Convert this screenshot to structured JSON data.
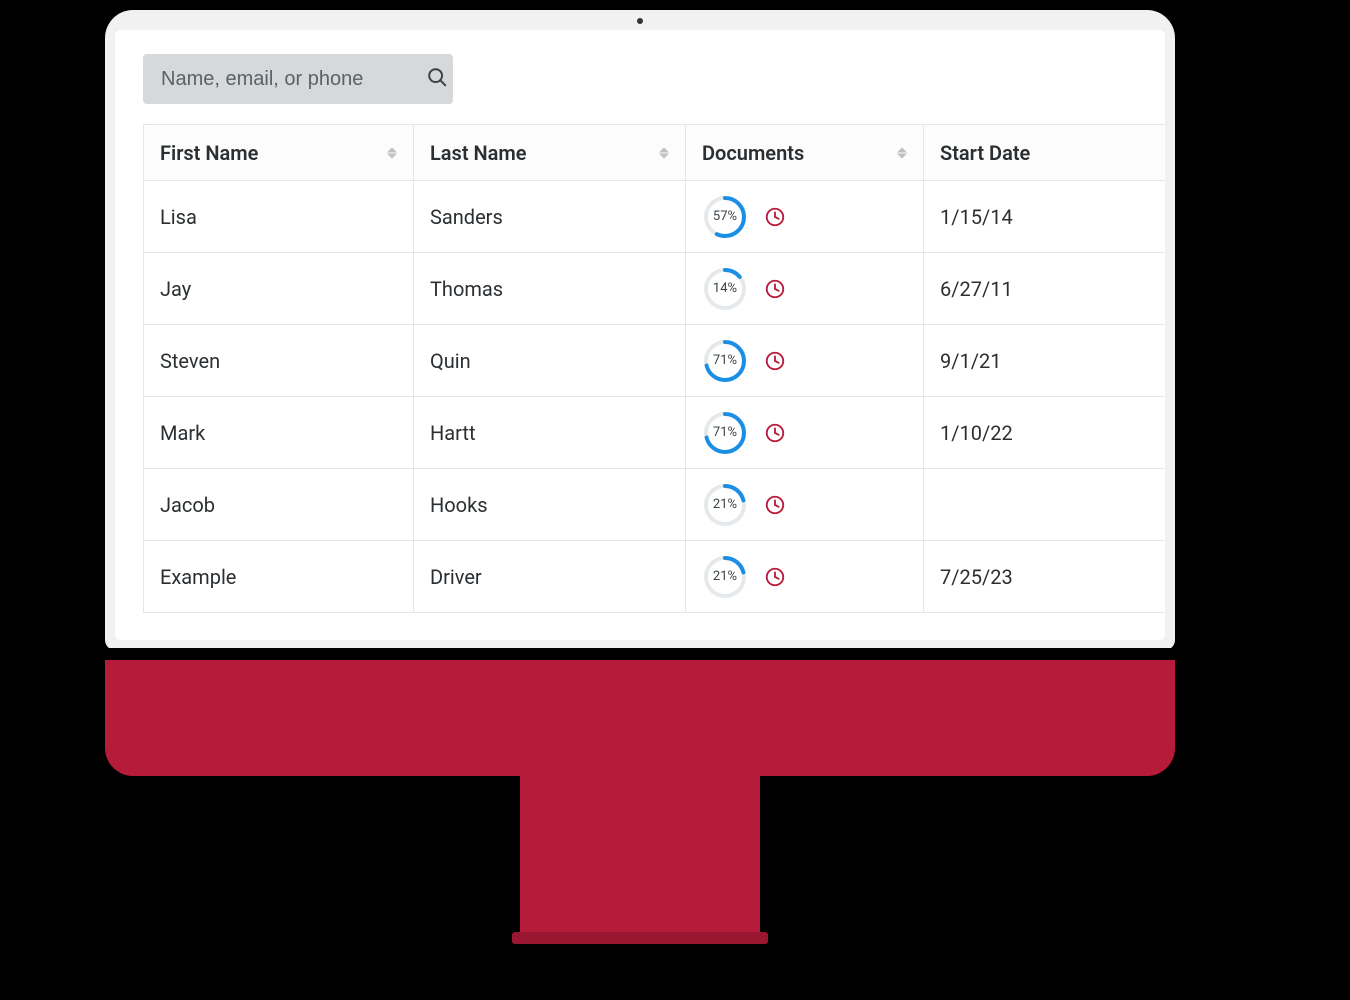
{
  "search": {
    "placeholder": "Name, email, or phone"
  },
  "table": {
    "columns": [
      "First Name",
      "Last Name",
      "Documents",
      "Start Date"
    ],
    "rows": [
      {
        "first": "Lisa",
        "last": "Sanders",
        "percent": 57,
        "date": "1/15/14"
      },
      {
        "first": "Jay",
        "last": "Thomas",
        "percent": 14,
        "date": "6/27/11"
      },
      {
        "first": "Steven",
        "last": "Quin",
        "percent": 71,
        "date": "9/1/21"
      },
      {
        "first": "Mark",
        "last": "Hartt",
        "percent": 71,
        "date": "1/10/22"
      },
      {
        "first": "Jacob",
        "last": "Hooks",
        "percent": 21,
        "date": ""
      },
      {
        "first": "Example",
        "last": "Driver",
        "percent": 21,
        "date": "7/25/23"
      }
    ]
  },
  "styling": {
    "progress_ring_color": "#1a8fe3",
    "progress_track_color": "#e6e9eb",
    "clock_icon_color": "#b61c3a",
    "monitor_accent": "#b61c3a",
    "search_bg": "#d5d9db",
    "border_color": "#e4e6e8",
    "text_color": "#2b2f32"
  }
}
